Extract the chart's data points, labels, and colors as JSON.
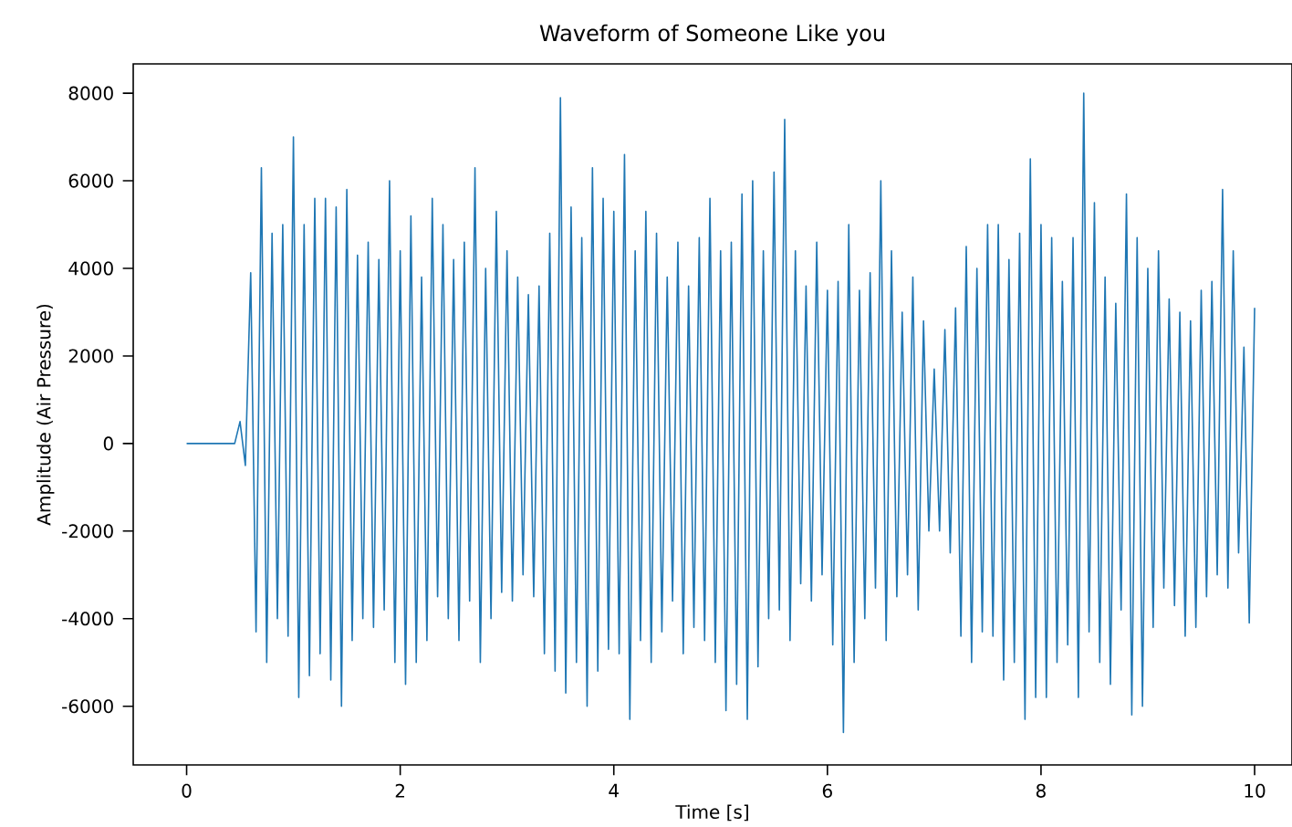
{
  "chart_data": {
    "type": "line",
    "title": "Waveform of Someone Like you",
    "xlabel": "Time [s]",
    "ylabel": "Amplitude (Air Pressure)",
    "xlim": [
      -0.5,
      10.35
    ],
    "ylim": [
      -7340,
      8670
    ],
    "xticks": [
      0,
      2,
      4,
      6,
      8,
      10
    ],
    "yticks": [
      -6000,
      -4000,
      -2000,
      0,
      2000,
      4000,
      6000,
      8000
    ],
    "marker": "none",
    "line_style": "solid",
    "series": [
      {
        "color": "#1f77b4",
        "x": [
          0,
          0.45,
          0.5,
          0.55,
          0.6,
          0.65,
          0.7,
          0.75,
          0.8,
          0.85,
          0.9,
          0.95,
          1.0,
          1.05,
          1.1,
          1.15,
          1.2,
          1.25,
          1.3,
          1.35,
          1.4,
          1.45,
          1.5,
          1.55,
          1.6,
          1.65,
          1.7,
          1.75,
          1.8,
          1.85,
          1.9,
          1.95,
          2.0,
          2.05,
          2.1,
          2.15,
          2.2,
          2.25,
          2.3,
          2.35,
          2.4,
          2.45,
          2.5,
          2.55,
          2.6,
          2.65,
          2.7,
          2.75,
          2.8,
          2.85,
          2.9,
          2.95,
          3.0,
          3.05,
          3.1,
          3.15,
          3.2,
          3.25,
          3.3,
          3.35,
          3.4,
          3.45,
          3.5,
          3.55,
          3.6,
          3.65,
          3.7,
          3.75,
          3.8,
          3.85,
          3.9,
          3.95,
          4.0,
          4.05,
          4.1,
          4.15,
          4.2,
          4.25,
          4.3,
          4.35,
          4.4,
          4.45,
          4.5,
          4.55,
          4.6,
          4.65,
          4.7,
          4.75,
          4.8,
          4.85,
          4.9,
          4.95,
          5.0,
          5.05,
          5.1,
          5.15,
          5.2,
          5.25,
          5.3,
          5.35,
          5.4,
          5.45,
          5.5,
          5.55,
          5.6,
          5.65,
          5.7,
          5.75,
          5.8,
          5.85,
          5.9,
          5.95,
          6.0,
          6.05,
          6.1,
          6.15,
          6.2,
          6.25,
          6.3,
          6.35,
          6.4,
          6.45,
          6.5,
          6.55,
          6.6,
          6.65,
          6.7,
          6.75,
          6.8,
          6.85,
          6.9,
          6.95,
          7.0,
          7.05,
          7.1,
          7.15,
          7.2,
          7.25,
          7.3,
          7.35,
          7.4,
          7.45,
          7.5,
          7.55,
          7.6,
          7.65,
          7.7,
          7.75,
          7.8,
          7.85,
          7.9,
          7.95,
          8.0,
          8.05,
          8.1,
          8.15,
          8.2,
          8.25,
          8.3,
          8.35,
          8.4,
          8.45,
          8.5,
          8.55,
          8.6,
          8.65,
          8.7,
          8.75,
          8.8,
          8.85,
          8.9,
          8.95,
          9.0,
          9.05,
          9.1,
          9.15,
          9.2,
          9.25,
          9.3,
          9.35,
          9.4,
          9.45,
          9.5,
          9.55,
          9.6,
          9.65,
          9.7,
          9.75,
          9.8,
          9.85,
          9.9,
          9.95,
          10.0
        ],
        "values": [
          0,
          0,
          500,
          -500,
          3900,
          -4300,
          6300,
          -5000,
          4800,
          -4000,
          5000,
          -4400,
          7000,
          -5800,
          5000,
          -5300,
          5600,
          -4800,
          5600,
          -5400,
          5400,
          -6000,
          5800,
          -4500,
          4300,
          -4000,
          4600,
          -4200,
          4200,
          -3800,
          6000,
          -5000,
          4400,
          -5500,
          5200,
          -5000,
          3800,
          -4500,
          5600,
          -3500,
          5000,
          -4000,
          4200,
          -4500,
          4600,
          -3600,
          6300,
          -5000,
          4000,
          -4000,
          5300,
          -3400,
          4400,
          -3600,
          3800,
          -3000,
          3400,
          -3500,
          3600,
          -4800,
          4800,
          -5200,
          7900,
          -5700,
          5400,
          -5000,
          4700,
          -6000,
          6300,
          -5200,
          5600,
          -4700,
          5300,
          -4800,
          6600,
          -6300,
          4400,
          -4500,
          5300,
          -5000,
          4800,
          -4300,
          3800,
          -3600,
          4600,
          -4800,
          3600,
          -4200,
          4700,
          -4500,
          5600,
          -5000,
          4400,
          -6100,
          4600,
          -5500,
          5700,
          -6300,
          6000,
          -5100,
          4400,
          -4000,
          6200,
          -3800,
          7400,
          -4500,
          4400,
          -3200,
          3600,
          -3600,
          4600,
          -3000,
          3500,
          -4600,
          3700,
          -6600,
          5000,
          -5000,
          3500,
          -4000,
          3900,
          -3300,
          6000,
          -4500,
          4400,
          -3500,
          3000,
          -3000,
          3800,
          -3800,
          2800,
          -2000,
          1700,
          -2000,
          2600,
          -2500,
          3100,
          -4400,
          4500,
          -5000,
          4000,
          -4300,
          5000,
          -4400,
          5000,
          -5400,
          4200,
          -5000,
          4800,
          -6300,
          6500,
          -5800,
          5000,
          -5800,
          4700,
          -5000,
          3700,
          -4600,
          4700,
          -5800,
          8000,
          -4300,
          5500,
          -5000,
          3800,
          -5500,
          3200,
          -3800,
          5700,
          -6200,
          4700,
          -6000,
          4000,
          -4200,
          4400,
          -3300,
          3300,
          -3700,
          3000,
          -4400,
          2800,
          -4200,
          3500,
          -3500,
          3700,
          -3000,
          5800,
          -3300,
          4400,
          -2500,
          2200,
          -4100,
          3100
        ]
      }
    ]
  }
}
